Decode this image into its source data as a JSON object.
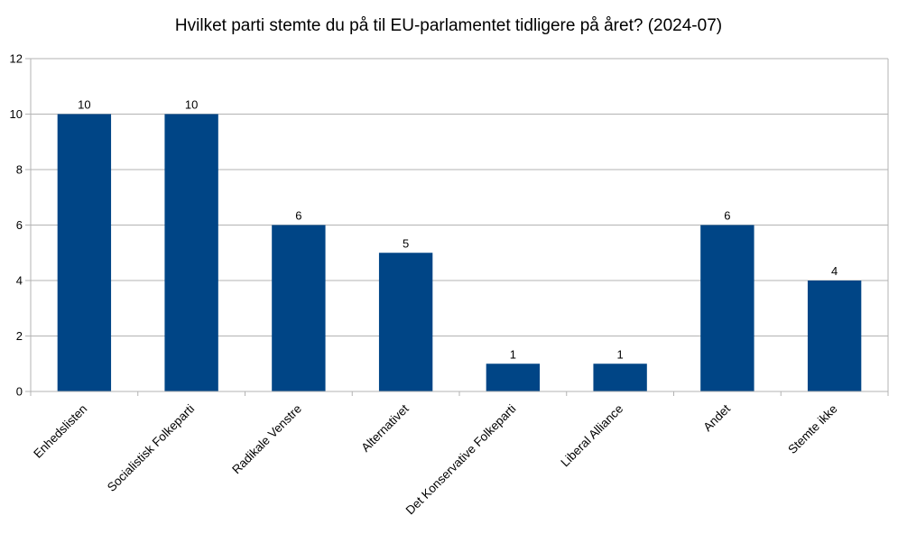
{
  "chart_data": {
    "type": "bar",
    "title": "Hvilket parti stemte du på til EU-parlamentet tidligere på året? (2024-07)",
    "xlabel": "",
    "ylabel": "",
    "categories": [
      "Enhedslisten",
      "Socialistisk Folkeparti",
      "Radikale Venstre",
      "Alternativet",
      "Det Konservative Folkeparti",
      "Liberal Alliance",
      "Andet",
      "Stemte ikke"
    ],
    "values": [
      10,
      10,
      6,
      5,
      1,
      1,
      6,
      4
    ],
    "data_labels": [
      "10",
      "10",
      "6",
      "5",
      "1",
      "1",
      "6",
      "4"
    ],
    "ylim": [
      0,
      12
    ],
    "yticks": [
      0,
      2,
      4,
      6,
      8,
      10,
      12
    ],
    "grid": true,
    "bar_color": "#004586",
    "grid_color": "#b3b3b3",
    "axis_color": "#b3b3b3"
  }
}
